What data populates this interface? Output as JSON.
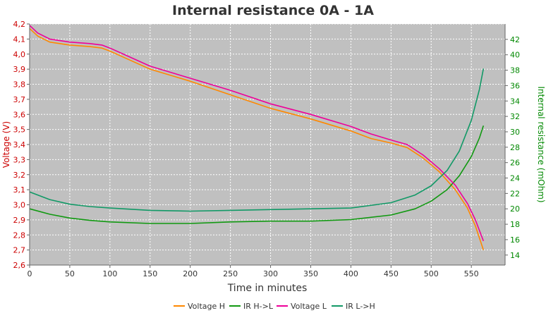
{
  "chart_data": {
    "type": "line",
    "title": "Internal resistance  0A - 1A",
    "xlabel": "Time in minutes",
    "ylabel_left": "Voltage (V)",
    "ylabel_right": "Internal resistance (mOhm)",
    "xlim": [
      0,
      592
    ],
    "ylim_left": [
      2.6,
      4.2
    ],
    "ylim_right": [
      12.7,
      44.0
    ],
    "x_ticks": [
      "0",
      "50",
      "100",
      "150",
      "200",
      "250",
      "300",
      "350",
      "400",
      "450",
      "500",
      "550"
    ],
    "y_left_ticks": [
      "2,6",
      "2,7",
      "2,8",
      "2,9",
      "3,0",
      "3,1",
      "3,2",
      "3,3",
      "3,4",
      "3,5",
      "3,6",
      "3,7",
      "3,8",
      "3,9",
      "4,0",
      "4,1",
      "4,2"
    ],
    "y_right_ticks": [
      "14",
      "16",
      "18",
      "20",
      "22",
      "24",
      "26",
      "28",
      "30",
      "32",
      "34",
      "36",
      "38",
      "40",
      "42"
    ],
    "grid": true,
    "legend_position": "bottom",
    "colors": {
      "plot_background": "#c0c0c0",
      "grid": "#ffffff",
      "left_axis": "#cc0000",
      "right_axis": "#008800",
      "voltage_h": "#ff8800",
      "ir_h_l": "#119911",
      "voltage_l": "#ee0099",
      "ir_l_h": "#119966"
    },
    "series": [
      {
        "name": "Voltage H",
        "axis": "left",
        "color": "#ff8800",
        "x": [
          0,
          10,
          25,
          50,
          75,
          90,
          100,
          125,
          150,
          200,
          250,
          300,
          350,
          400,
          425,
          450,
          470,
          490,
          510,
          530,
          545,
          555,
          565
        ],
        "y": [
          4.17,
          4.12,
          4.08,
          4.06,
          4.05,
          4.04,
          4.02,
          3.96,
          3.9,
          3.82,
          3.73,
          3.64,
          3.57,
          3.49,
          3.44,
          3.41,
          3.38,
          3.31,
          3.22,
          3.1,
          2.98,
          2.86,
          2.7
        ]
      },
      {
        "name": "IR H->L",
        "axis": "right",
        "color": "#119911",
        "x": [
          0,
          25,
          50,
          75,
          100,
          150,
          200,
          250,
          300,
          350,
          400,
          450,
          480,
          500,
          520,
          535,
          550,
          560,
          565
        ],
        "y": [
          20.0,
          19.3,
          18.8,
          18.5,
          18.3,
          18.1,
          18.1,
          18.3,
          18.4,
          18.4,
          18.6,
          19.2,
          20.0,
          21.0,
          22.5,
          24.3,
          26.8,
          29.2,
          30.8
        ]
      },
      {
        "name": "Voltage L",
        "axis": "left",
        "color": "#ee0099",
        "x": [
          0,
          10,
          25,
          50,
          75,
          90,
          100,
          125,
          150,
          200,
          250,
          300,
          350,
          400,
          425,
          450,
          470,
          490,
          510,
          530,
          545,
          555,
          565
        ],
        "y": [
          4.19,
          4.14,
          4.1,
          4.08,
          4.07,
          4.06,
          4.04,
          3.98,
          3.92,
          3.84,
          3.76,
          3.67,
          3.6,
          3.52,
          3.47,
          3.43,
          3.4,
          3.33,
          3.24,
          3.13,
          3.01,
          2.9,
          2.76
        ]
      },
      {
        "name": "IR L->H",
        "axis": "right",
        "color": "#119966",
        "x": [
          0,
          25,
          50,
          75,
          100,
          150,
          200,
          250,
          300,
          350,
          400,
          450,
          480,
          500,
          520,
          535,
          550,
          560,
          565
        ],
        "y": [
          22.2,
          21.2,
          20.6,
          20.3,
          20.1,
          19.8,
          19.7,
          19.8,
          19.9,
          20.0,
          20.1,
          20.8,
          21.8,
          23.0,
          25.0,
          27.5,
          31.5,
          35.5,
          38.2
        ]
      }
    ]
  }
}
